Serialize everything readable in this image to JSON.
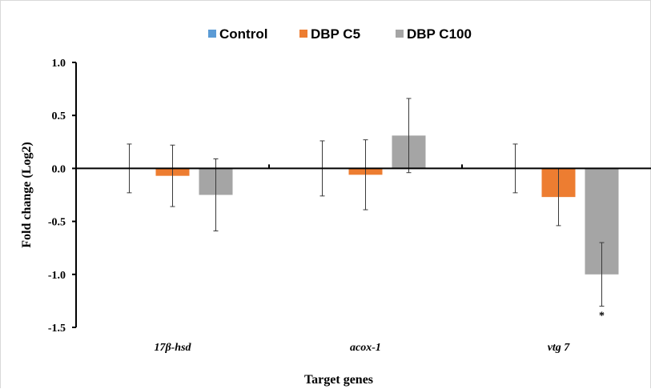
{
  "chart_data": {
    "type": "bar",
    "categories": [
      "17β-hsd",
      "acox-1",
      "vtg 7"
    ],
    "series": [
      {
        "name": "Control",
        "values": [
          0,
          0,
          0
        ],
        "errors": [
          0.23,
          0.26,
          0.23
        ],
        "color": "#5b9bd5"
      },
      {
        "name": "DBP C5",
        "values": [
          -0.07,
          -0.06,
          -0.27
        ],
        "errors": [
          0.29,
          0.33,
          0.27
        ],
        "color": "#ed7d31"
      },
      {
        "name": "DBP C100",
        "values": [
          -0.25,
          0.31,
          -1.0
        ],
        "errors": [
          0.34,
          0.35,
          0.3
        ],
        "color": "#a5a5a5"
      }
    ],
    "xlabel": "Target genes",
    "ylabel": "Fold change (Log2)",
    "ylim": [
      -1.5,
      1.0
    ],
    "yticks": [
      "1.0",
      "0.5",
      "0.0",
      "-0.5",
      "-1.0",
      "-1.5"
    ],
    "ytick_values": [
      1.0,
      0.5,
      0.0,
      -0.5,
      -1.0,
      -1.5
    ],
    "annotations": [
      {
        "text": "*",
        "category": "vtg 7",
        "series": "DBP C100"
      }
    ],
    "legend_position": "top",
    "grid": false
  }
}
